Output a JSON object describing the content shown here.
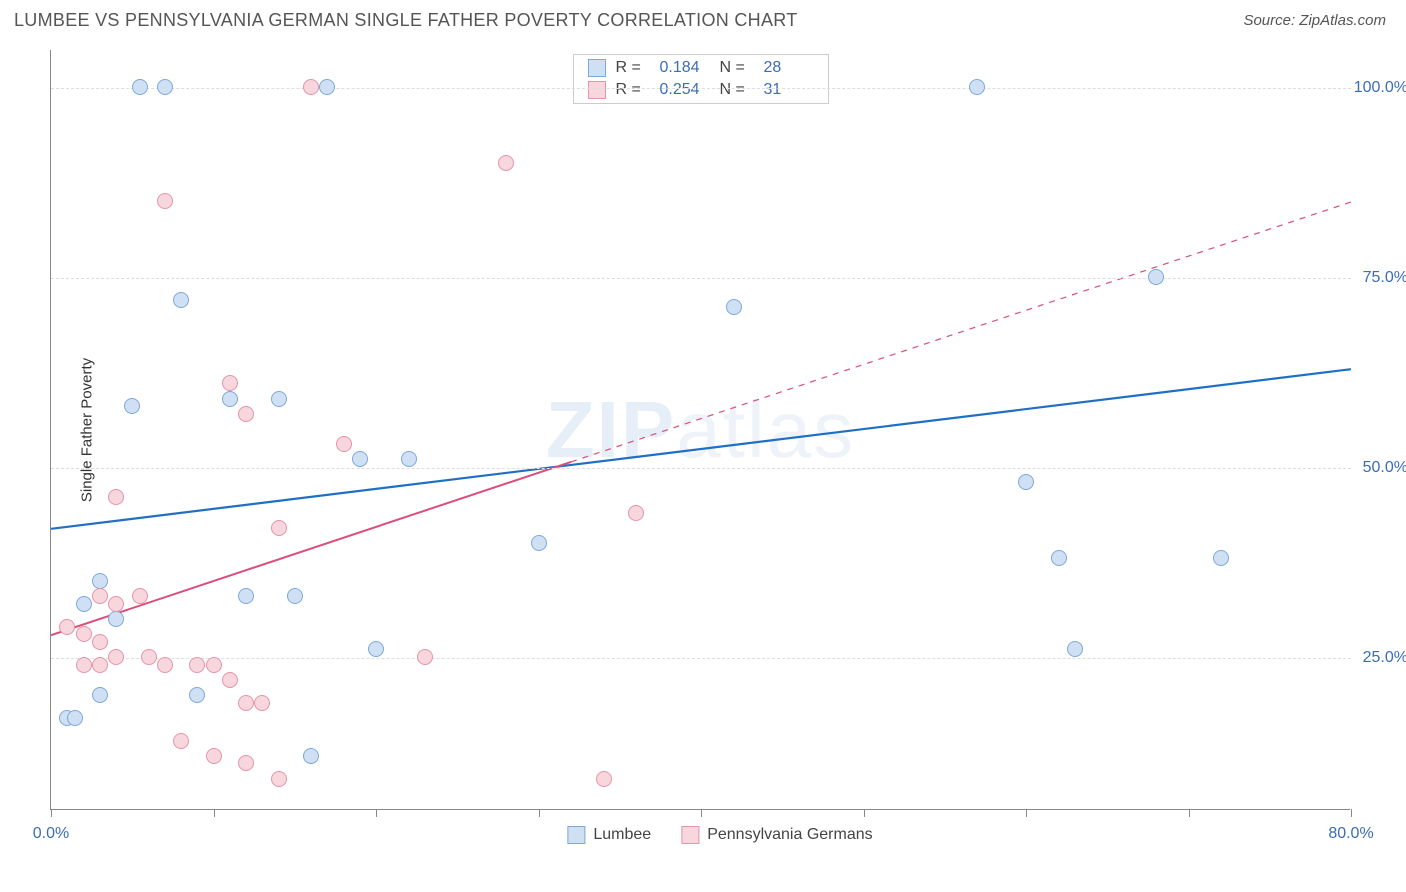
{
  "header": {
    "title": "LUMBEE VS PENNSYLVANIA GERMAN SINGLE FATHER POVERTY CORRELATION CHART",
    "source": "Source: ZipAtlas.com"
  },
  "watermark": {
    "bold": "ZIP",
    "rest": "atlas"
  },
  "chart": {
    "type": "scatter",
    "y_axis_title": "Single Father Poverty",
    "background_color": "#ffffff",
    "grid_color": "#dddddd",
    "axis_color": "#888888",
    "label_color": "#3b6db5",
    "xlim": [
      0,
      80
    ],
    "ylim": [
      5,
      105
    ],
    "x_ticks": [
      0,
      10,
      20,
      30,
      40,
      50,
      60,
      70,
      80
    ],
    "x_tick_labels": {
      "0": "0.0%",
      "80": "80.0%"
    },
    "y_gridlines": [
      25,
      50,
      75,
      100
    ],
    "y_tick_labels": {
      "25": "25.0%",
      "50": "50.0%",
      "75": "75.0%",
      "100": "100.0%"
    },
    "point_radius": 8,
    "point_stroke_width": 1.2,
    "series": [
      {
        "name": "Lumbee",
        "fill": "#cfe0f4",
        "stroke": "#7da8d9",
        "points": [
          [
            5.5,
            100
          ],
          [
            7,
            100
          ],
          [
            17,
            100
          ],
          [
            57,
            100
          ],
          [
            8,
            72
          ],
          [
            42,
            71
          ],
          [
            68,
            75
          ],
          [
            5,
            58
          ],
          [
            11,
            59
          ],
          [
            14,
            59
          ],
          [
            19,
            51
          ],
          [
            22,
            51
          ],
          [
            60,
            48
          ],
          [
            30,
            40
          ],
          [
            62,
            38
          ],
          [
            72,
            38
          ],
          [
            3,
            35
          ],
          [
            2,
            32
          ],
          [
            4,
            30
          ],
          [
            12,
            33
          ],
          [
            15,
            33
          ],
          [
            20,
            26
          ],
          [
            63,
            26
          ],
          [
            3,
            20
          ],
          [
            9,
            20
          ],
          [
            16,
            12
          ],
          [
            1,
            17
          ],
          [
            1.5,
            17
          ]
        ],
        "trend": {
          "x1": 0,
          "y1": 42,
          "x2": 80,
          "y2": 63,
          "color": "#1f6fc4",
          "width": 2.2,
          "dash_after_x": null
        }
      },
      {
        "name": "Pennsylvania Germans",
        "fill": "#f7d6de",
        "stroke": "#e594aa",
        "points": [
          [
            16,
            100
          ],
          [
            28,
            90
          ],
          [
            7,
            85
          ],
          [
            11,
            61
          ],
          [
            12,
            57
          ],
          [
            18,
            53
          ],
          [
            14,
            42
          ],
          [
            36,
            44
          ],
          [
            23,
            25
          ],
          [
            5.5,
            33
          ],
          [
            4,
            46
          ],
          [
            1,
            29
          ],
          [
            2,
            28
          ],
          [
            3,
            27
          ],
          [
            4,
            25
          ],
          [
            6,
            25
          ],
          [
            7,
            24
          ],
          [
            9,
            24
          ],
          [
            10,
            24
          ],
          [
            11,
            22
          ],
          [
            12,
            19
          ],
          [
            13,
            19
          ],
          [
            2,
            24
          ],
          [
            3,
            24
          ],
          [
            8,
            14
          ],
          [
            10,
            12
          ],
          [
            12,
            11
          ],
          [
            14,
            9
          ],
          [
            34,
            9
          ],
          [
            3,
            33
          ],
          [
            4,
            32
          ]
        ],
        "trend": {
          "x1": 0,
          "y1": 28,
          "x2": 80,
          "y2": 85,
          "color": "#d94f7a",
          "width": 2,
          "dash_after_x": 32
        }
      }
    ],
    "legend_top": [
      {
        "swatch_fill": "#cfe0f4",
        "swatch_stroke": "#7da8d9",
        "r_label": "R =",
        "r_value": "0.184",
        "n_label": "N =",
        "n_value": "28"
      },
      {
        "swatch_fill": "#f7d6de",
        "swatch_stroke": "#e594aa",
        "r_label": "R =",
        "r_value": "0.254",
        "n_label": "N =",
        "n_value": "31"
      }
    ],
    "legend_bottom": [
      {
        "swatch_fill": "#cfe0f4",
        "swatch_stroke": "#7da8d9",
        "label": "Lumbee"
      },
      {
        "swatch_fill": "#f7d6de",
        "swatch_stroke": "#e594aa",
        "label": "Pennsylvania Germans"
      }
    ]
  }
}
